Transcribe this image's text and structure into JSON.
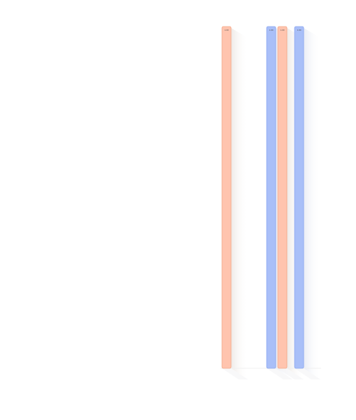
{
  "chart_data": {
    "type": "bar",
    "orientation": "vertical",
    "ylim": [
      0,
      1
    ],
    "grid": false,
    "legend": "none",
    "shadow": true,
    "bars": [
      {
        "value": 1.0,
        "label": "1.00",
        "color": "#ffc4ae",
        "stroke": "#f4a888"
      },
      {
        "value": 1.0,
        "label": "1.00",
        "color": "#a9bff8",
        "stroke": "#8aa6f0"
      },
      {
        "value": 1.0,
        "label": "1.00",
        "color": "#ffc4ae",
        "stroke": "#f4a888"
      },
      {
        "value": 1.0,
        "label": "1.00",
        "color": "#a9bff8",
        "stroke": "#8aa6f0"
      }
    ]
  }
}
